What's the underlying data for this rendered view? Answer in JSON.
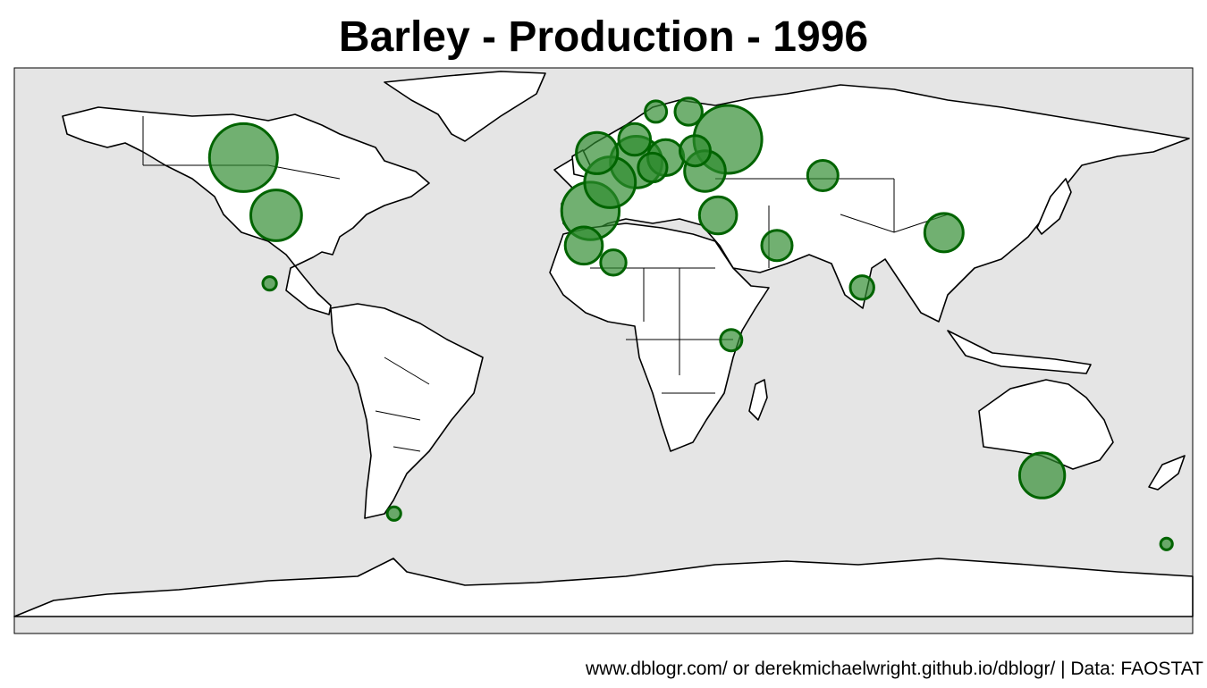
{
  "title": "Barley - Production - 1996",
  "caption": "www.dblogr.com/ or derekmichaelwright.github.io/dblogr/ | Data: FAOSTAT",
  "colors": {
    "ocean": "#e5e5e5",
    "land": "#ffffff",
    "bubble_fill": "#2e8b2e",
    "bubble_stroke": "#006400"
  },
  "bubbles": [
    {
      "place": "Canada",
      "lon": -110,
      "lat": 52,
      "value": 1.0
    },
    {
      "place": "United States",
      "lon": -100,
      "lat": 39,
      "value": 0.56
    },
    {
      "place": "Mexico",
      "lon": -102,
      "lat": 23,
      "value": 0.04
    },
    {
      "place": "Spain",
      "lon": -4,
      "lat": 40,
      "value": 0.72
    },
    {
      "place": "France",
      "lon": 2,
      "lat": 46.5,
      "value": 0.56
    },
    {
      "place": "Germany",
      "lon": 10,
      "lat": 51,
      "value": 0.58
    },
    {
      "place": "United Kingdom",
      "lon": -2,
      "lat": 53,
      "value": 0.37
    },
    {
      "place": "Denmark",
      "lon": 9.5,
      "lat": 56,
      "value": 0.22
    },
    {
      "place": "Poland",
      "lon": 19,
      "lat": 52,
      "value": 0.28
    },
    {
      "place": "Ukraine",
      "lon": 31,
      "lat": 49,
      "value": 0.36
    },
    {
      "place": "Russian Federation",
      "lon": 38,
      "lat": 56,
      "value": 1.0
    },
    {
      "place": "Kazakhstan",
      "lon": 67,
      "lat": 48,
      "value": 0.2
    },
    {
      "place": "Turkey",
      "lon": 35,
      "lat": 39,
      "value": 0.3
    },
    {
      "place": "Iran",
      "lon": 53,
      "lat": 32,
      "value": 0.2
    },
    {
      "place": "Morocco",
      "lon": -6,
      "lat": 32,
      "value": 0.3
    },
    {
      "place": "Algeria",
      "lon": 3,
      "lat": 28,
      "value": 0.14
    },
    {
      "place": "China",
      "lon": 104,
      "lat": 35,
      "value": 0.32
    },
    {
      "place": "India",
      "lon": 79,
      "lat": 22,
      "value": 0.12
    },
    {
      "place": "Ethiopia",
      "lon": 39,
      "lat": 9,
      "value": 0.1
    },
    {
      "place": "Australia",
      "lon": 134,
      "lat": -25,
      "value": 0.44
    },
    {
      "place": "Argentina",
      "lon": -64,
      "lat": -34,
      "value": 0.04
    },
    {
      "place": "New Zealand",
      "lon": 172,
      "lat": -41,
      "value": 0.03
    },
    {
      "place": "Finland",
      "lon": 26,
      "lat": 62,
      "value": 0.16
    },
    {
      "place": "Sweden",
      "lon": 16,
      "lat": 62,
      "value": 0.1
    },
    {
      "place": "Czech Republic",
      "lon": 15,
      "lat": 49.8,
      "value": 0.18
    },
    {
      "place": "Belarus",
      "lon": 28,
      "lat": 53.5,
      "value": 0.2
    }
  ]
}
